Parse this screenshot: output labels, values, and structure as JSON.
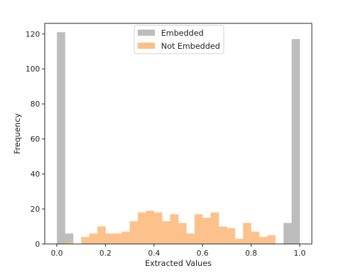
{
  "chart_data": {
    "type": "bar",
    "subtype": "histogram",
    "title": "",
    "xlabel": "Extracted Values",
    "ylabel": "Frequency",
    "xlim": [
      -0.05,
      1.05
    ],
    "ylim": [
      0,
      126
    ],
    "xticks": [
      0.0,
      0.2,
      0.4,
      0.6,
      0.8,
      1.0
    ],
    "xtick_labels": [
      "0.0",
      "0.2",
      "0.4",
      "0.6",
      "0.8",
      "1.0"
    ],
    "yticks": [
      0,
      20,
      40,
      60,
      80,
      100,
      120
    ],
    "ytick_labels": [
      "0",
      "20",
      "40",
      "60",
      "80",
      "100",
      "120"
    ],
    "grid": false,
    "legend_position": "top-center",
    "bin_edges": [
      0.0,
      0.0333,
      0.0667,
      0.1,
      0.1333,
      0.1667,
      0.2,
      0.2333,
      0.2667,
      0.3,
      0.3333,
      0.3667,
      0.4,
      0.4333,
      0.4667,
      0.5,
      0.5333,
      0.5667,
      0.6,
      0.6333,
      0.6667,
      0.7,
      0.7333,
      0.7667,
      0.8,
      0.8333,
      0.8667,
      0.9,
      0.9333,
      0.9667,
      1.0
    ],
    "series": [
      {
        "name": "Embedded",
        "color": "#bdbdbd",
        "values": [
          121,
          6,
          0,
          0,
          0,
          0,
          0,
          0,
          0,
          0,
          0,
          0,
          0,
          0,
          0,
          0,
          0,
          0,
          0,
          0,
          0,
          0,
          0,
          0,
          0,
          0,
          0,
          0,
          12,
          117
        ]
      },
      {
        "name": "Not Embedded",
        "color": "#fdbf86",
        "values": [
          0,
          1,
          0,
          4,
          6,
          10,
          6,
          6,
          7,
          13,
          18,
          19,
          18,
          13,
          17,
          12,
          6,
          17,
          15,
          18,
          10,
          9,
          3,
          12,
          7,
          4,
          5,
          0,
          0,
          0
        ]
      }
    ]
  }
}
